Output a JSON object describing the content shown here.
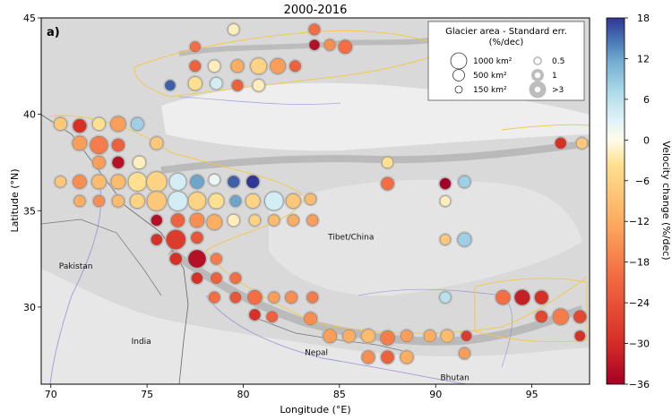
{
  "title": "2000-2016",
  "panel_label": "a)",
  "x_axis": {
    "label": "Longitude (°E)",
    "ticks": [
      "70",
      "75",
      "80",
      "85",
      "90",
      "95"
    ],
    "range": [
      69.5,
      98
    ]
  },
  "y_axis": {
    "label": "Latitude (°N)",
    "ticks": [
      "30",
      "35",
      "40",
      "45"
    ],
    "range": [
      26,
      45
    ]
  },
  "colorbar": {
    "label": "Velocity change (%/dec)",
    "ticks": [
      "18",
      "12",
      "6",
      "0",
      "−6",
      "−12",
      "−18",
      "−24",
      "−30",
      "−36"
    ],
    "range": [
      -36,
      18
    ]
  },
  "legend": {
    "title_line1": "Glacier area - Standard err.",
    "title_line2": "(%/dec)",
    "area_items": [
      {
        "label": "1000 km²",
        "area": 1000
      },
      {
        "label": "500 km²",
        "area": 500
      },
      {
        "label": "150 km²",
        "area": 150
      }
    ],
    "err_items": [
      {
        "label": "0.5",
        "err": 0.5
      },
      {
        "label": "1",
        "err": 1
      },
      {
        "label": ">3",
        "err": 3
      }
    ]
  },
  "places": [
    {
      "name": "Pakistan",
      "lon": 71.3,
      "lat": 32.0
    },
    {
      "name": "India",
      "lon": 74.7,
      "lat": 28.1
    },
    {
      "name": "Tibet/China",
      "lon": 85.6,
      "lat": 33.5
    },
    {
      "name": "Nepal",
      "lon": 83.8,
      "lat": 27.5
    },
    {
      "name": "Bhutan",
      "lon": 91.0,
      "lat": 26.2
    }
  ],
  "map_data": {
    "type": "scatter",
    "points": [
      {
        "lon": 77.5,
        "lat": 43.5,
        "v": -20,
        "s": 0.25
      },
      {
        "lon": 79.5,
        "lat": 44.4,
        "v": -2,
        "s": 0.3
      },
      {
        "lon": 83.7,
        "lat": 44.4,
        "v": -20,
        "s": 0.3
      },
      {
        "lon": 83.7,
        "lat": 43.6,
        "v": -34,
        "s": 0.25
      },
      {
        "lon": 84.5,
        "lat": 43.6,
        "v": -16,
        "s": 0.3
      },
      {
        "lon": 85.3,
        "lat": 43.5,
        "v": -20,
        "s": 0.45
      },
      {
        "lon": 77.5,
        "lat": 42.5,
        "v": -22,
        "s": 0.3
      },
      {
        "lon": 78.5,
        "lat": 42.5,
        "v": -2,
        "s": 0.35
      },
      {
        "lon": 79.7,
        "lat": 42.5,
        "v": -12,
        "s": 0.4
      },
      {
        "lon": 80.8,
        "lat": 42.5,
        "v": -6,
        "s": 0.6
      },
      {
        "lon": 81.8,
        "lat": 42.5,
        "v": -14,
        "s": 0.55
      },
      {
        "lon": 82.7,
        "lat": 42.5,
        "v": -22,
        "s": 0.3
      },
      {
        "lon": 76.2,
        "lat": 41.5,
        "v": 16,
        "s": 0.25
      },
      {
        "lon": 77.5,
        "lat": 41.6,
        "v": -4,
        "s": 0.45
      },
      {
        "lon": 78.6,
        "lat": 41.6,
        "v": 4,
        "s": 0.35
      },
      {
        "lon": 79.7,
        "lat": 41.5,
        "v": -22,
        "s": 0.3
      },
      {
        "lon": 80.8,
        "lat": 41.5,
        "v": -2,
        "s": 0.35
      },
      {
        "lon": 70.5,
        "lat": 39.5,
        "v": -8,
        "s": 0.4
      },
      {
        "lon": 71.5,
        "lat": 39.4,
        "v": -30,
        "s": 0.45
      },
      {
        "lon": 72.5,
        "lat": 39.5,
        "v": -4,
        "s": 0.4
      },
      {
        "lon": 73.5,
        "lat": 39.5,
        "v": -14,
        "s": 0.55
      },
      {
        "lon": 74.5,
        "lat": 39.5,
        "v": 8,
        "s": 0.4
      },
      {
        "lon": 71.5,
        "lat": 38.5,
        "v": -14,
        "s": 0.5
      },
      {
        "lon": 72.5,
        "lat": 38.4,
        "v": -18,
        "s": 0.7
      },
      {
        "lon": 73.5,
        "lat": 38.4,
        "v": -22,
        "s": 0.4
      },
      {
        "lon": 75.5,
        "lat": 38.5,
        "v": -8,
        "s": 0.4
      },
      {
        "lon": 72.5,
        "lat": 37.5,
        "v": -14,
        "s": 0.4
      },
      {
        "lon": 73.5,
        "lat": 37.5,
        "v": -34,
        "s": 0.35
      },
      {
        "lon": 74.6,
        "lat": 37.5,
        "v": -2,
        "s": 0.4
      },
      {
        "lon": 70.5,
        "lat": 36.5,
        "v": -8,
        "s": 0.3
      },
      {
        "lon": 71.5,
        "lat": 36.5,
        "v": -16,
        "s": 0.45
      },
      {
        "lon": 72.5,
        "lat": 36.5,
        "v": -10,
        "s": 0.5
      },
      {
        "lon": 73.5,
        "lat": 36.5,
        "v": -10,
        "s": 0.5
      },
      {
        "lon": 74.5,
        "lat": 36.5,
        "v": -4,
        "s": 0.75
      },
      {
        "lon": 75.5,
        "lat": 36.5,
        "v": -6,
        "s": 0.85
      },
      {
        "lon": 76.6,
        "lat": 36.5,
        "v": 4,
        "s": 0.65
      },
      {
        "lon": 77.6,
        "lat": 36.5,
        "v": 12,
        "s": 0.45
      },
      {
        "lon": 78.5,
        "lat": 36.6,
        "v": 2,
        "s": 0.3
      },
      {
        "lon": 79.5,
        "lat": 36.5,
        "v": 16,
        "s": 0.35
      },
      {
        "lon": 80.5,
        "lat": 36.5,
        "v": 18,
        "s": 0.4
      },
      {
        "lon": 71.5,
        "lat": 35.5,
        "v": -12,
        "s": 0.3
      },
      {
        "lon": 72.5,
        "lat": 35.5,
        "v": -16,
        "s": 0.3
      },
      {
        "lon": 73.5,
        "lat": 35.5,
        "v": -10,
        "s": 0.35
      },
      {
        "lon": 74.5,
        "lat": 35.5,
        "v": -6,
        "s": 0.5
      },
      {
        "lon": 75.5,
        "lat": 35.5,
        "v": -8,
        "s": 0.8
      },
      {
        "lon": 76.6,
        "lat": 35.5,
        "v": 4,
        "s": 0.8
      },
      {
        "lon": 77.6,
        "lat": 35.5,
        "v": -6,
        "s": 0.7
      },
      {
        "lon": 78.6,
        "lat": 35.5,
        "v": -4,
        "s": 0.55
      },
      {
        "lon": 79.6,
        "lat": 35.5,
        "v": 12,
        "s": 0.3
      },
      {
        "lon": 80.5,
        "lat": 35.5,
        "v": -6,
        "s": 0.5
      },
      {
        "lon": 81.6,
        "lat": 35.5,
        "v": 4,
        "s": 0.75
      },
      {
        "lon": 82.6,
        "lat": 35.5,
        "v": -8,
        "s": 0.5
      },
      {
        "lon": 83.5,
        "lat": 35.6,
        "v": -10,
        "s": 0.3
      },
      {
        "lon": 75.5,
        "lat": 34.5,
        "v": -34,
        "s": 0.3
      },
      {
        "lon": 76.6,
        "lat": 34.5,
        "v": -22,
        "s": 0.45
      },
      {
        "lon": 77.6,
        "lat": 34.5,
        "v": -16,
        "s": 0.5
      },
      {
        "lon": 78.5,
        "lat": 34.4,
        "v": -12,
        "s": 0.55
      },
      {
        "lon": 79.5,
        "lat": 34.5,
        "v": -2,
        "s": 0.35
      },
      {
        "lon": 80.6,
        "lat": 34.5,
        "v": -6,
        "s": 0.3
      },
      {
        "lon": 81.6,
        "lat": 34.5,
        "v": -10,
        "s": 0.3
      },
      {
        "lon": 82.6,
        "lat": 34.5,
        "v": -12,
        "s": 0.3
      },
      {
        "lon": 83.6,
        "lat": 34.5,
        "v": -14,
        "s": 0.3
      },
      {
        "lon": 75.5,
        "lat": 33.5,
        "v": -30,
        "s": 0.3
      },
      {
        "lon": 76.5,
        "lat": 33.5,
        "v": -28,
        "s": 0.8
      },
      {
        "lon": 77.6,
        "lat": 33.6,
        "v": -24,
        "s": 0.35
      },
      {
        "lon": 76.5,
        "lat": 32.5,
        "v": -30,
        "s": 0.35
      },
      {
        "lon": 77.6,
        "lat": 32.5,
        "v": -34,
        "s": 0.7
      },
      {
        "lon": 78.6,
        "lat": 32.5,
        "v": -18,
        "s": 0.3
      },
      {
        "lon": 77.6,
        "lat": 31.5,
        "v": -30,
        "s": 0.3
      },
      {
        "lon": 78.6,
        "lat": 31.5,
        "v": -22,
        "s": 0.3
      },
      {
        "lon": 79.6,
        "lat": 31.5,
        "v": -20,
        "s": 0.3
      },
      {
        "lon": 78.5,
        "lat": 30.5,
        "v": -20,
        "s": 0.3
      },
      {
        "lon": 79.6,
        "lat": 30.5,
        "v": -24,
        "s": 0.3
      },
      {
        "lon": 80.6,
        "lat": 30.5,
        "v": -20,
        "s": 0.5
      },
      {
        "lon": 81.6,
        "lat": 30.5,
        "v": -14,
        "s": 0.3
      },
      {
        "lon": 82.5,
        "lat": 30.5,
        "v": -16,
        "s": 0.35
      },
      {
        "lon": 83.6,
        "lat": 30.5,
        "v": -18,
        "s": 0.3
      },
      {
        "lon": 80.6,
        "lat": 29.6,
        "v": -30,
        "s": 0.3
      },
      {
        "lon": 81.5,
        "lat": 29.5,
        "v": -22,
        "s": 0.3
      },
      {
        "lon": 83.5,
        "lat": 29.4,
        "v": -16,
        "s": 0.4
      },
      {
        "lon": 84.5,
        "lat": 28.5,
        "v": -14,
        "s": 0.45
      },
      {
        "lon": 85.5,
        "lat": 28.5,
        "v": -12,
        "s": 0.4
      },
      {
        "lon": 86.5,
        "lat": 28.5,
        "v": -10,
        "s": 0.45
      },
      {
        "lon": 87.5,
        "lat": 28.4,
        "v": -18,
        "s": 0.5
      },
      {
        "lon": 88.5,
        "lat": 28.5,
        "v": -14,
        "s": 0.35
      },
      {
        "lon": 89.7,
        "lat": 28.5,
        "v": -12,
        "s": 0.35
      },
      {
        "lon": 90.6,
        "lat": 28.5,
        "v": -10,
        "s": 0.4
      },
      {
        "lon": 91.6,
        "lat": 28.5,
        "v": -28,
        "s": 0.25
      },
      {
        "lon": 86.5,
        "lat": 27.4,
        "v": -16,
        "s": 0.4
      },
      {
        "lon": 87.5,
        "lat": 27.4,
        "v": -22,
        "s": 0.4
      },
      {
        "lon": 88.5,
        "lat": 27.4,
        "v": -12,
        "s": 0.4
      },
      {
        "lon": 91.5,
        "lat": 27.6,
        "v": -14,
        "s": 0.3
      },
      {
        "lon": 93.5,
        "lat": 30.5,
        "v": -20,
        "s": 0.5
      },
      {
        "lon": 94.5,
        "lat": 30.5,
        "v": -32,
        "s": 0.55
      },
      {
        "lon": 95.5,
        "lat": 30.5,
        "v": -30,
        "s": 0.45
      },
      {
        "lon": 95.5,
        "lat": 29.5,
        "v": -26,
        "s": 0.35
      },
      {
        "lon": 96.5,
        "lat": 29.5,
        "v": -18,
        "s": 0.6
      },
      {
        "lon": 97.5,
        "lat": 29.5,
        "v": -26,
        "s": 0.4
      },
      {
        "lon": 97.5,
        "lat": 28.5,
        "v": -30,
        "s": 0.25
      },
      {
        "lon": 87.5,
        "lat": 37.5,
        "v": -4,
        "s": 0.3
      },
      {
        "lon": 87.5,
        "lat": 36.4,
        "v": -20,
        "s": 0.4
      },
      {
        "lon": 90.5,
        "lat": 36.4,
        "v": -36,
        "s": 0.3
      },
      {
        "lon": 91.5,
        "lat": 36.5,
        "v": 8,
        "s": 0.35
      },
      {
        "lon": 90.5,
        "lat": 35.5,
        "v": -2,
        "s": 0.25
      },
      {
        "lon": 90.5,
        "lat": 33.5,
        "v": -8,
        "s": 0.25
      },
      {
        "lon": 91.5,
        "lat": 33.5,
        "v": 8,
        "s": 0.45
      },
      {
        "lon": 90.5,
        "lat": 30.5,
        "v": 6,
        "s": 0.3
      },
      {
        "lon": 96.5,
        "lat": 38.5,
        "v": -30,
        "s": 0.3
      },
      {
        "lon": 97.6,
        "lat": 38.5,
        "v": -8,
        "s": 0.3
      }
    ]
  }
}
